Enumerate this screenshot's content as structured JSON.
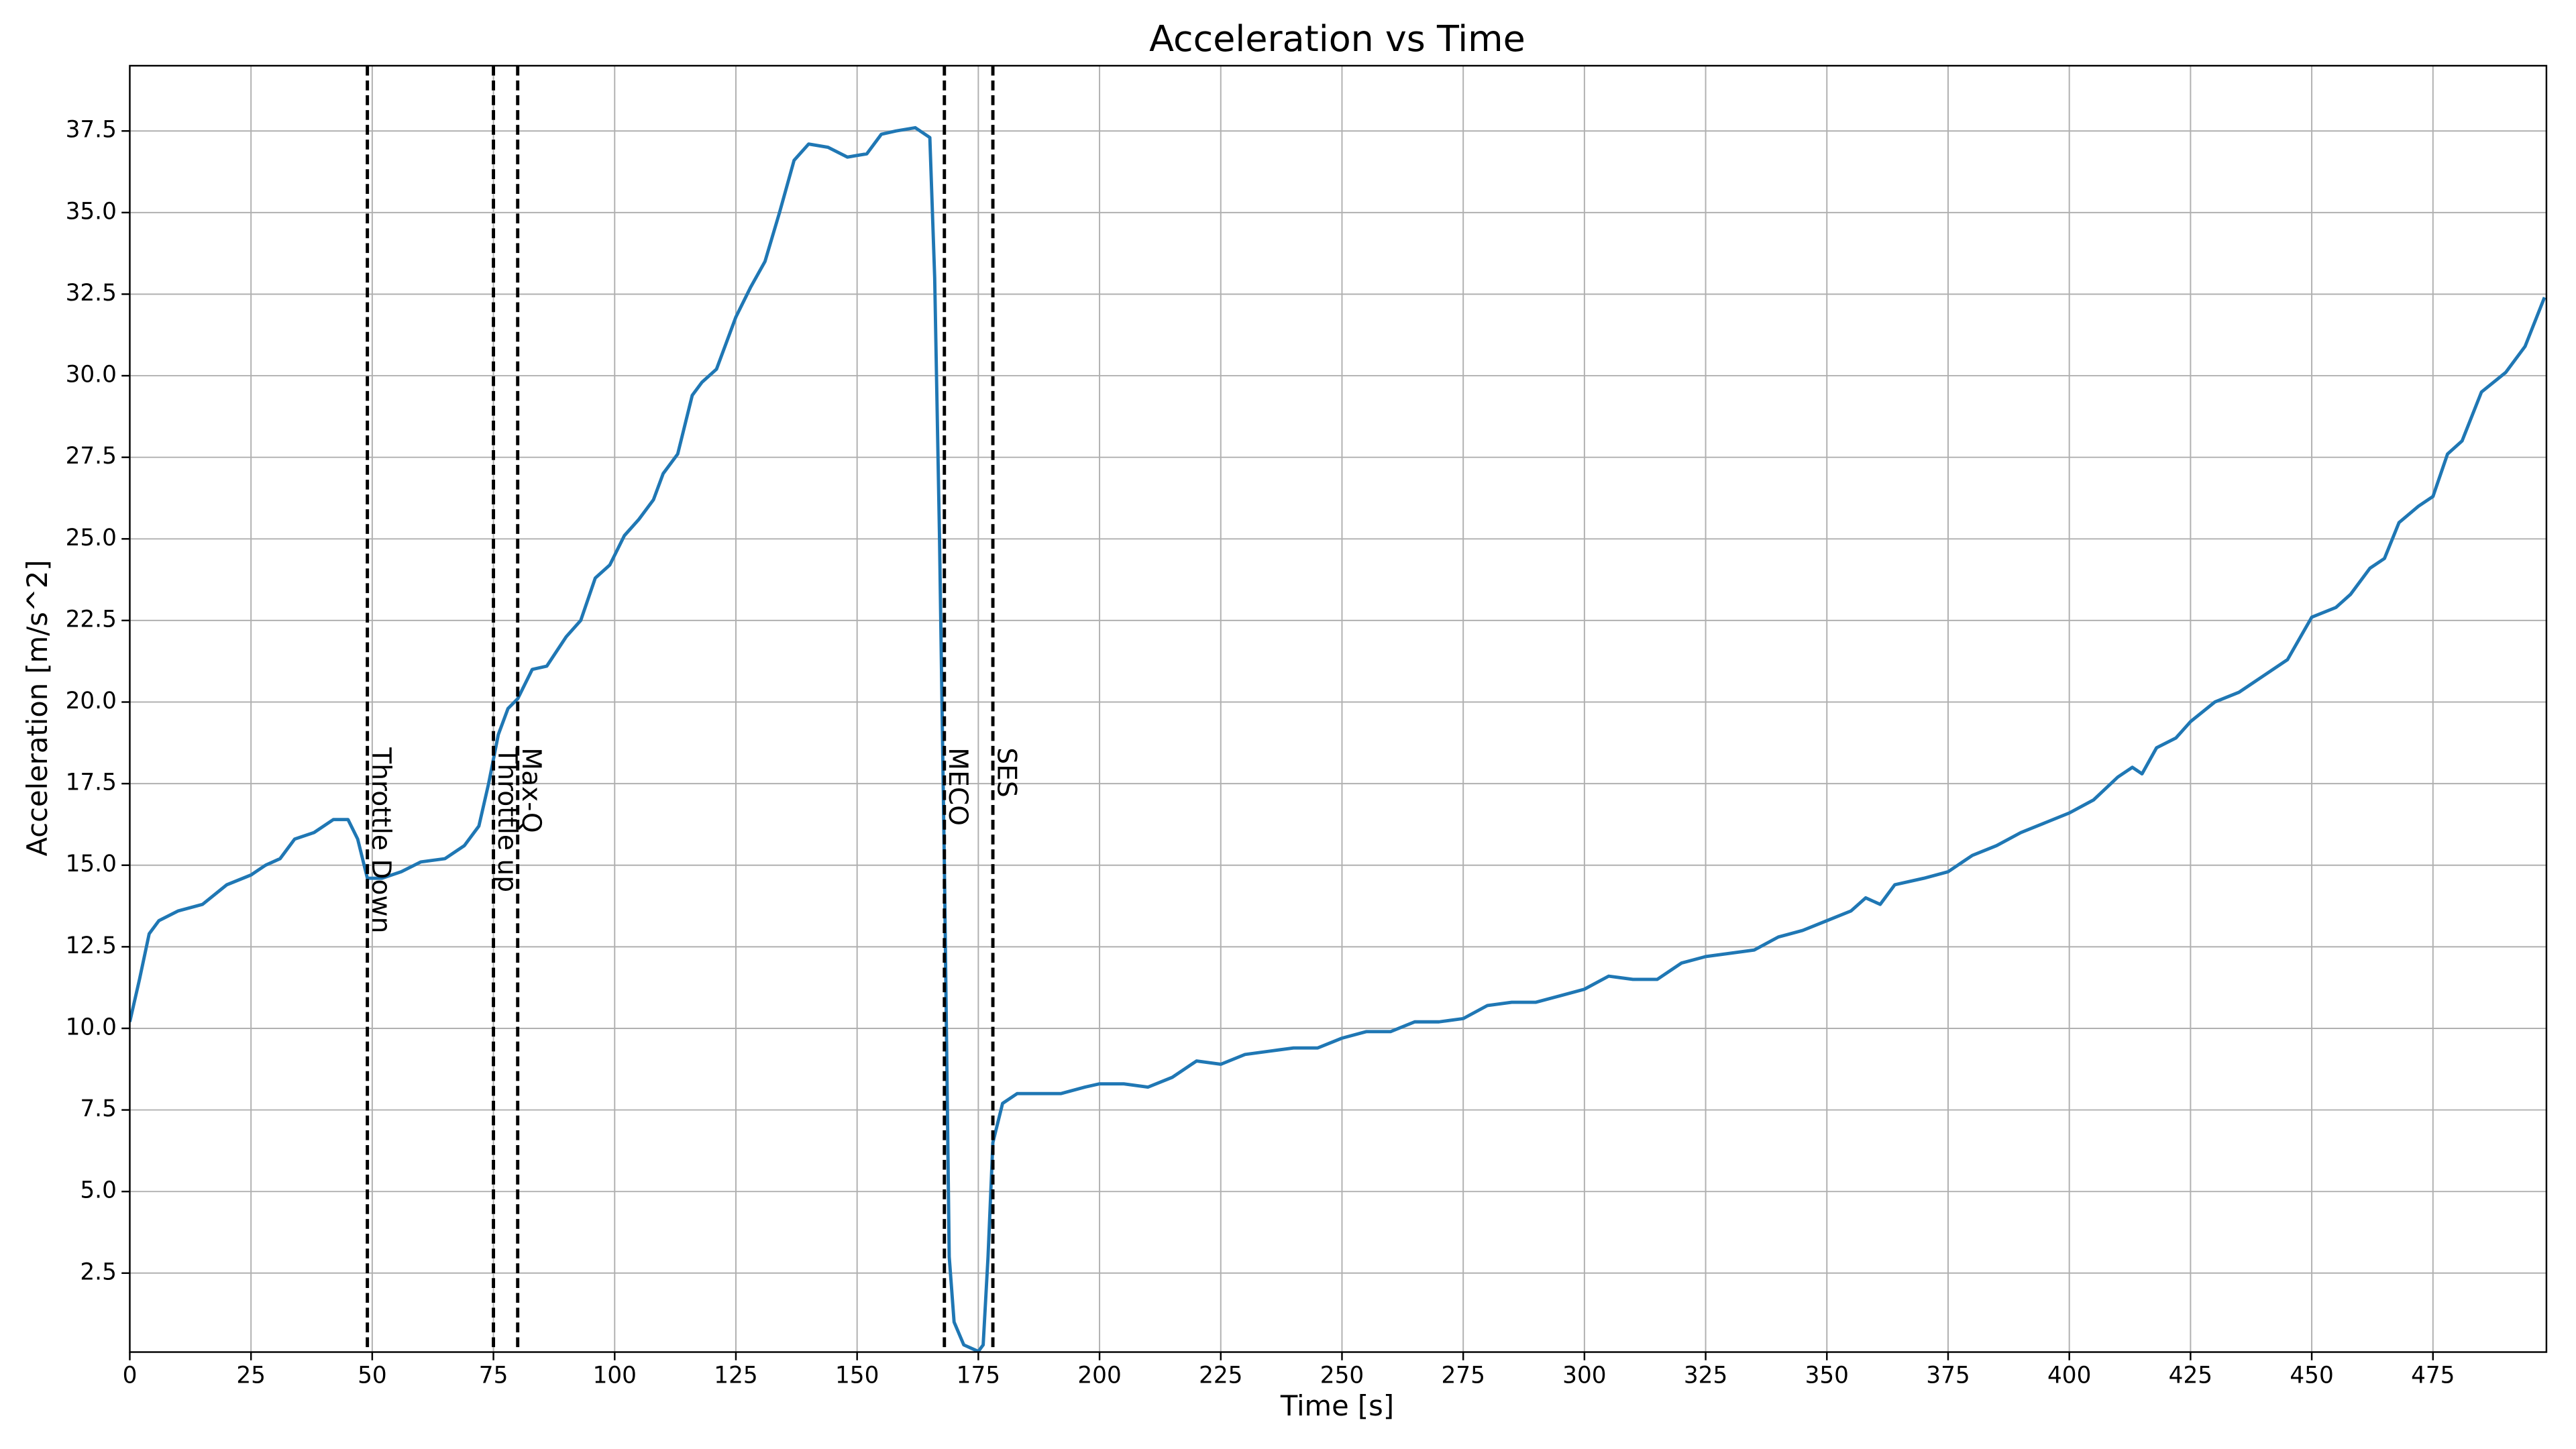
{
  "chart_data": {
    "type": "line",
    "title": "Acceleration vs Time",
    "x_label": "Time [s]",
    "y_label": "Acceleration [m/s^2]",
    "color": "#1f77b4",
    "grid": true,
    "xlim": [
      0,
      498.4
    ],
    "ylim": [
      0.08,
      39.5
    ],
    "xticks": [
      0,
      25,
      50,
      75,
      100,
      125,
      150,
      175,
      200,
      225,
      250,
      275,
      300,
      325,
      350,
      375,
      400,
      425,
      450,
      475
    ],
    "yticks": [
      2.5,
      {
        "value": 5,
        "label": "5.0"
      },
      7.5,
      {
        "value": 10,
        "label": "10.0"
      },
      12.5,
      {
        "value": 15,
        "label": "15.0"
      },
      17.5,
      {
        "value": 20,
        "label": "20.0"
      },
      22.5,
      {
        "value": 25,
        "label": "25.0"
      },
      27.5,
      {
        "value": 30,
        "label": "30.0"
      },
      32.5,
      {
        "value": 35,
        "label": "35.0"
      },
      37.5
    ],
    "events": [
      {
        "x": 49,
        "label": "Throttle Down"
      },
      {
        "x": 75,
        "label": "Throttle up"
      },
      {
        "x": 80,
        "label": "Max-Q"
      },
      {
        "x": 168,
        "label": "MECO"
      },
      {
        "x": 178,
        "label": "SES"
      }
    ],
    "x": [
      0,
      2,
      4,
      6,
      10,
      15,
      20,
      25,
      28,
      31,
      34,
      38,
      42,
      45,
      47,
      49,
      52,
      56,
      60,
      65,
      69,
      72,
      74,
      76,
      78,
      80,
      83,
      86,
      90,
      93,
      96,
      99,
      102,
      105,
      108,
      110,
      113,
      116,
      118,
      121,
      125,
      128,
      131,
      134,
      137,
      140,
      144,
      148,
      152,
      155,
      158,
      162,
      165,
      166,
      167,
      168,
      169,
      170,
      172,
      175,
      176,
      177,
      178,
      180,
      183,
      187,
      192,
      197,
      200,
      205,
      210,
      215,
      220,
      225,
      230,
      235,
      240,
      245,
      250,
      255,
      260,
      265,
      270,
      275,
      280,
      285,
      290,
      295,
      300,
      305,
      310,
      315,
      320,
      325,
      330,
      335,
      340,
      345,
      350,
      355,
      358,
      361,
      364,
      370,
      375,
      380,
      385,
      390,
      395,
      400,
      405,
      410,
      413,
      415,
      418,
      422,
      425,
      430,
      435,
      440,
      445,
      450,
      455,
      458,
      462,
      465,
      468,
      472,
      475,
      478,
      481,
      485,
      490,
      494,
      498
    ],
    "values": [
      10.2,
      11.5,
      12.9,
      13.3,
      13.6,
      13.8,
      14.4,
      14.7,
      15.0,
      15.2,
      15.8,
      16.0,
      16.4,
      16.4,
      15.8,
      14.6,
      14.6,
      14.8,
      15.1,
      15.2,
      15.6,
      16.2,
      17.5,
      19.0,
      19.8,
      20.1,
      21.0,
      21.1,
      22.0,
      22.5,
      23.8,
      24.2,
      25.1,
      25.6,
      26.2,
      27.0,
      27.6,
      29.4,
      29.8,
      30.2,
      31.8,
      32.7,
      33.5,
      35.0,
      36.6,
      37.1,
      37.0,
      36.7,
      36.8,
      37.4,
      37.5,
      37.6,
      37.3,
      33.0,
      25,
      15,
      3,
      1.0,
      0.3,
      0.1,
      0.3,
      3,
      6.5,
      7.7,
      8.0,
      8.0,
      8.0,
      8.2,
      8.3,
      8.3,
      8.2,
      8.5,
      9.0,
      8.9,
      9.2,
      9.3,
      9.4,
      9.4,
      9.7,
      9.9,
      9.9,
      10.2,
      10.2,
      10.3,
      10.7,
      10.8,
      10.8,
      11.0,
      11.2,
      11.6,
      11.5,
      11.5,
      12.0,
      12.2,
      12.3,
      12.4,
      12.8,
      13.0,
      13.3,
      13.6,
      14.0,
      13.8,
      14.4,
      14.6,
      14.8,
      15.3,
      15.6,
      16.0,
      16.3,
      16.6,
      17.0,
      17.7,
      18.0,
      17.8,
      18.6,
      18.9,
      19.4,
      20.0,
      20.3,
      20.8,
      21.3,
      22.6,
      22.9,
      23.3,
      24.1,
      24.4,
      25.5,
      26.0,
      26.3,
      27.6,
      28.0,
      29.5,
      30.1,
      30.9,
      32.4
    ]
  }
}
